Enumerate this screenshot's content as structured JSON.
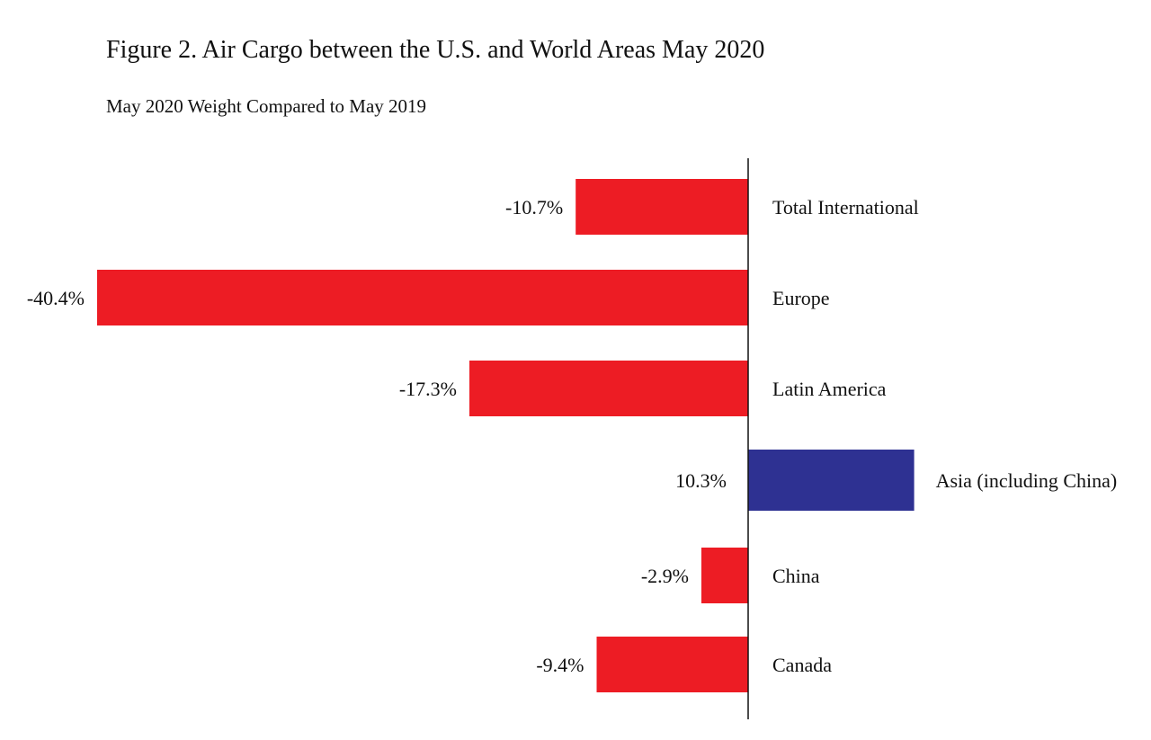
{
  "chart_data": {
    "type": "bar",
    "orientation": "horizontal",
    "title": "Figure 2. Air Cargo between the U.S. and World Areas May 2020",
    "subtitle": "May 2020 Weight Compared to May 2019",
    "categories": [
      "Total International",
      "Europe",
      "Latin America",
      "Asia (including China)",
      "China",
      "Canada"
    ],
    "values": [
      -10.7,
      -40.4,
      -17.3,
      10.3,
      -2.9,
      -9.4
    ],
    "value_labels": [
      "-10.7%",
      "-40.4%",
      "-17.3%",
      "10.3%",
      "-2.9%",
      "-9.4%"
    ],
    "unit": "%",
    "xlim": [
      -40.4,
      10.3
    ],
    "grid": false,
    "legend": "none",
    "colors": {
      "negative": "#ED1C24",
      "positive": "#2E3192",
      "axis": "#111111"
    }
  }
}
